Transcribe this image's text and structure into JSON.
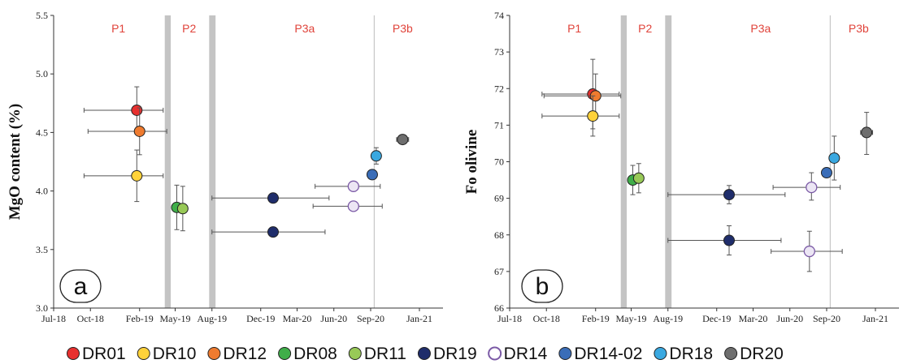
{
  "colors": {
    "DR01": "#e8302f",
    "DR10": "#ffd23a",
    "DR12": "#ef7b2f",
    "DR08": "#3fae49",
    "DR11": "#98c957",
    "DR19": "#1f2d6b",
    "DR14": "#ece6f4",
    "DR14-02": "#3a6db8",
    "DR18": "#3aa8e0",
    "DR20": "#6e6e6e",
    "DR14_stroke": "#7b5aa6",
    "phase_label": "#e0433a",
    "band": "#c4c4c4"
  },
  "legend": [
    {
      "label": "DR01",
      "key": "DR01"
    },
    {
      "label": "DR10",
      "key": "DR10"
    },
    {
      "label": "DR12",
      "key": "DR12"
    },
    {
      "label": "DR08",
      "key": "DR08"
    },
    {
      "label": "DR11",
      "key": "DR11"
    },
    {
      "label": "DR19",
      "key": "DR19"
    },
    {
      "label": "DR14",
      "key": "DR14",
      "hollow": true
    },
    {
      "label": "DR14-02",
      "key": "DR14-02"
    },
    {
      "label": "DR18",
      "key": "DR18"
    },
    {
      "label": "DR20",
      "key": "DR20"
    }
  ],
  "chart_data": [
    {
      "type": "scatter",
      "panel": "a",
      "ylabel": "MgO content (%)",
      "ylim": [
        3.0,
        5.5
      ],
      "yticks": [
        3.0,
        3.5,
        4.0,
        4.5,
        5.0,
        5.5
      ],
      "ytick_labels": [
        "3.0",
        "3.5",
        "4.0",
        "4.5",
        "5.0",
        "5.5"
      ],
      "xlim": [
        "2018-07-01",
        "2021-03-01"
      ],
      "xticks": [
        "2018-07-01",
        "2018-10-01",
        "2019-02-01",
        "2019-05-01",
        "2019-08-01",
        "2019-12-01",
        "2020-03-01",
        "2020-06-01",
        "2020-09-01",
        "2021-01-01"
      ],
      "xtick_labels": [
        "Jul-18",
        "Oct-18",
        "Feb-19",
        "May-19",
        "Aug-19",
        "Dec-19",
        "Mar-20",
        "Jun-20",
        "Sep-20",
        "Jan-21"
      ],
      "bands": [
        [
          "2019-04-05",
          "2019-04-20"
        ],
        [
          "2019-07-25",
          "2019-08-10"
        ]
      ],
      "vline": "2020-09-10",
      "phases": [
        {
          "label": "P1",
          "x": "2018-12-10"
        },
        {
          "label": "P2",
          "x": "2019-06-05"
        },
        {
          "label": "P3a",
          "x": "2020-03-20"
        },
        {
          "label": "P3b",
          "x": "2020-11-20"
        }
      ],
      "points": [
        {
          "sample": "DR01",
          "x": "2019-01-25",
          "y": 4.69,
          "xmin": "2018-09-15",
          "xmax": "2019-04-01",
          "ymin": 4.49,
          "ymax": 4.89
        },
        {
          "sample": "DR12",
          "x": "2019-02-01",
          "y": 4.51,
          "xmin": "2018-09-25",
          "xmax": "2019-04-10",
          "ymin": 4.31,
          "ymax": 4.71
        },
        {
          "sample": "DR10",
          "x": "2019-01-25",
          "y": 4.13,
          "xmin": "2018-09-15",
          "xmax": "2019-04-01",
          "ymin": 3.91,
          "ymax": 4.35
        },
        {
          "sample": "DR08",
          "x": "2019-05-05",
          "y": 3.86,
          "ymin": 3.67,
          "ymax": 4.05
        },
        {
          "sample": "DR11",
          "x": "2019-05-20",
          "y": 3.85,
          "ymin": 3.66,
          "ymax": 4.04
        },
        {
          "sample": "DR19",
          "x": "2020-01-01",
          "y": 3.94,
          "xmin": "2019-08-01",
          "xmax": "2020-05-20"
        },
        {
          "sample": "DR19",
          "x": "2020-01-01",
          "y": 3.65,
          "xmin": "2019-08-01",
          "xmax": "2020-05-10"
        },
        {
          "sample": "DR14",
          "x": "2020-07-20",
          "y": 4.04,
          "xmin": "2020-04-15",
          "xmax": "2020-09-25"
        },
        {
          "sample": "DR14",
          "x": "2020-07-20",
          "y": 3.87,
          "xmin": "2020-04-10",
          "xmax": "2020-09-30"
        },
        {
          "sample": "DR14-02",
          "x": "2020-09-05",
          "y": 4.14
        },
        {
          "sample": "DR18",
          "x": "2020-09-15",
          "y": 4.3,
          "ymin": 4.23,
          "ymax": 4.37
        },
        {
          "sample": "DR20",
          "x": "2020-11-20",
          "y": 4.44,
          "xmin": "2020-11-05",
          "xmax": "2020-12-05"
        }
      ]
    },
    {
      "type": "scatter",
      "panel": "b",
      "ylabel": "Fo olivine",
      "ylim": [
        66,
        74
      ],
      "yticks": [
        66,
        67,
        68,
        69,
        70,
        71,
        72,
        73,
        74
      ],
      "ytick_labels": [
        "66",
        "67",
        "68",
        "69",
        "70",
        "71",
        "72",
        "73",
        "74"
      ],
      "xlim": [
        "2018-07-01",
        "2021-03-01"
      ],
      "xticks": [
        "2018-07-01",
        "2018-10-01",
        "2019-02-01",
        "2019-05-01",
        "2019-08-01",
        "2019-12-01",
        "2020-03-01",
        "2020-06-01",
        "2020-09-01",
        "2021-01-01"
      ],
      "xtick_labels": [
        "Jul-18",
        "Oct-18",
        "Feb-19",
        "May-19",
        "Aug-19",
        "Dec-19",
        "Mar-20",
        "Jun-20",
        "Sep-20",
        "Jan-21"
      ],
      "bands": [
        [
          "2019-04-05",
          "2019-04-20"
        ],
        [
          "2019-07-25",
          "2019-08-10"
        ]
      ],
      "vline": "2020-09-10",
      "phases": [
        {
          "label": "P1",
          "x": "2018-12-10"
        },
        {
          "label": "P2",
          "x": "2019-06-05"
        },
        {
          "label": "P3a",
          "x": "2020-03-20"
        },
        {
          "label": "P3b",
          "x": "2020-11-20"
        }
      ],
      "points": [
        {
          "sample": "DR01",
          "x": "2019-01-25",
          "y": 71.85,
          "xmin": "2018-09-20",
          "xmax": "2019-04-01",
          "ymin": 70.9,
          "ymax": 72.8
        },
        {
          "sample": "DR12",
          "x": "2019-02-01",
          "y": 71.8,
          "xmin": "2018-09-25",
          "xmax": "2019-04-05",
          "ymin": 71.2,
          "ymax": 72.4
        },
        {
          "sample": "DR10",
          "x": "2019-01-25",
          "y": 71.25,
          "xmin": "2018-09-20",
          "xmax": "2019-04-01",
          "ymin": 70.7,
          "ymax": 71.8
        },
        {
          "sample": "DR08",
          "x": "2019-05-05",
          "y": 69.5,
          "ymin": 69.1,
          "ymax": 69.9
        },
        {
          "sample": "DR11",
          "x": "2019-05-20",
          "y": 69.55,
          "ymin": 69.15,
          "ymax": 69.95
        },
        {
          "sample": "DR19",
          "x": "2020-01-01",
          "y": 69.1,
          "xmin": "2019-08-01",
          "xmax": "2020-05-20",
          "ymin": 68.85,
          "ymax": 69.35
        },
        {
          "sample": "DR19",
          "x": "2020-01-01",
          "y": 67.85,
          "xmin": "2019-08-01",
          "xmax": "2020-05-10",
          "ymin": 67.45,
          "ymax": 68.25
        },
        {
          "sample": "DR14",
          "x": "2020-07-25",
          "y": 69.3,
          "xmin": "2020-04-20",
          "xmax": "2020-10-05",
          "ymin": 68.95,
          "ymax": 69.7
        },
        {
          "sample": "DR14",
          "x": "2020-07-20",
          "y": 67.55,
          "xmin": "2020-04-15",
          "xmax": "2020-10-10",
          "ymin": 67.0,
          "ymax": 68.1
        },
        {
          "sample": "DR14-02",
          "x": "2020-09-01",
          "y": 69.7
        },
        {
          "sample": "DR18",
          "x": "2020-09-20",
          "y": 70.1,
          "ymin": 69.5,
          "ymax": 70.7
        },
        {
          "sample": "DR20",
          "x": "2020-12-10",
          "y": 70.8,
          "xmin": "2020-11-25",
          "xmax": "2020-12-25",
          "ymin": 70.2,
          "ymax": 71.35
        }
      ]
    }
  ]
}
